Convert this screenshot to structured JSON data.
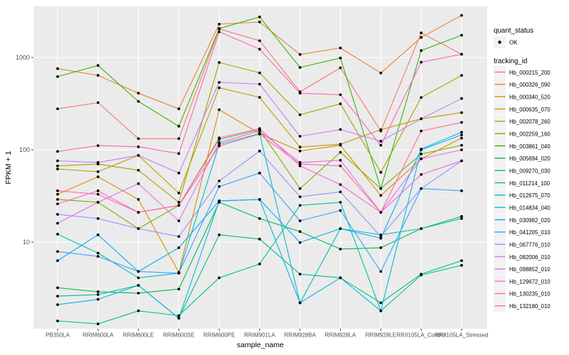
{
  "axes": {
    "x_title": "sample_name",
    "y_title": "FPKM + 1"
  },
  "legend": {
    "quant_status_title": "quant_status",
    "ok_label": "OK",
    "tracking_title": "tracking_id"
  },
  "colors": {
    "background": "#FFFFFF",
    "panel_bg": "#EBEBEB",
    "grid_line": "#FFFFFF",
    "tick_mark": "#333333",
    "tick_label": "#4D4D4D",
    "axis_title": "#000000",
    "legend_key_bg": "#F2F2F2",
    "point": "#000000"
  },
  "chart_data": {
    "type": "line",
    "title": "",
    "xlabel": "sample_name",
    "ylabel": "FPKM + 1",
    "y_scale": "log10",
    "grid": "on",
    "legend_position": "right",
    "point_shape": "filled-circle",
    "y_ticks": [
      1000,
      100,
      10
    ],
    "y_tick_labels": [
      "1000",
      "100",
      "10"
    ],
    "y_minor_exponents": [
      3.5,
      2.5,
      1.5,
      0.5
    ],
    "ylim": [
      0.9,
      3500
    ],
    "quant_status_items": [
      {
        "label": "OK",
        "symbol": "point",
        "color": "#000000"
      }
    ],
    "categories": [
      "PB350LA",
      "RRIM600LA",
      "RRIM600LE",
      "RRIM600SE",
      "RRIM600PE",
      "RRIM901LA",
      "RRIM928BA",
      "RRIM928LA",
      "RRIM928LE",
      "RRII105LA_Control",
      "RRII105LA_Stressed"
    ],
    "series": [
      {
        "name": "Hb_000215_200",
        "color": "#F8766D",
        "values": [
          278,
          325,
          132,
          132,
          2040,
          1520,
          425,
          774,
          160,
          1850,
          1085
        ]
      },
      {
        "name": "Hb_000326_090",
        "color": "#EA8331",
        "values": [
          757,
          640,
          410,
          278,
          2300,
          2425,
          1080,
          1270,
          680,
          1650,
          2865
        ]
      },
      {
        "name": "Hb_000340_520",
        "color": "#D89000",
        "values": [
          33,
          51,
          29,
          4.7,
          272,
          150,
          97,
          112,
          32,
          80,
          134
        ]
      },
      {
        "name": "Hb_000635_070",
        "color": "#C09B00",
        "values": [
          62,
          58,
          87,
          34,
          470,
          370,
          107,
          115,
          165,
          217,
          253
        ]
      },
      {
        "name": "Hb_002078_260",
        "color": "#A3A500",
        "values": [
          67,
          70,
          60,
          27,
          884,
          682,
          240,
          315,
          57,
          368,
          640
        ]
      },
      {
        "name": "Hb_002259_160",
        "color": "#7CAE00",
        "values": [
          29,
          27,
          14,
          25,
          130,
          165,
          38,
          94,
          38,
          90,
          112
        ]
      },
      {
        "name": "Hb_003861_040",
        "color": "#39B600",
        "values": [
          621,
          820,
          334,
          180,
          2060,
          2750,
          780,
          988,
          38,
          1190,
          1745
        ]
      },
      {
        "name": "Hb_005694_020",
        "color": "#00BB4E",
        "values": [
          3.2,
          2.9,
          2.8,
          3.1,
          27,
          18,
          13,
          8.4,
          8.7,
          14,
          19
        ]
      },
      {
        "name": "Hb_009270_030",
        "color": "#00BF7D",
        "values": [
          2.6,
          2.7,
          3.4,
          1.5,
          12,
          10.8,
          4.5,
          4.1,
          2.2,
          4.5,
          6.3
        ]
      },
      {
        "name": "Hb_011214_100",
        "color": "#00C1A3",
        "values": [
          1.4,
          1.3,
          1.8,
          1.6,
          4.1,
          5.8,
          25,
          27,
          1.8,
          4.4,
          5.6
        ]
      },
      {
        "name": "Hb_012675_070",
        "color": "#00BFC4",
        "values": [
          12.2,
          7.6,
          4.1,
          4.6,
          115,
          150,
          2.2,
          14,
          12,
          14,
          18
        ]
      },
      {
        "name": "Hb_014834_040",
        "color": "#00BAE0",
        "values": [
          2.1,
          2.4,
          3.4,
          1.5,
          28,
          29,
          2.2,
          4.1,
          1.8,
          100,
          145
        ]
      },
      {
        "name": "Hb_030982_020",
        "color": "#00B0F6",
        "values": [
          6.3,
          12,
          4.8,
          8.7,
          28,
          29,
          9.9,
          14,
          11,
          102,
          155
        ]
      },
      {
        "name": "Hb_041205_010",
        "color": "#35A2FF",
        "values": [
          7.9,
          7.0,
          4.8,
          4.6,
          40,
          56,
          17,
          22,
          4.8,
          38,
          36
        ]
      },
      {
        "name": "Hb_067776_010",
        "color": "#9590FF",
        "values": [
          20,
          18,
          14,
          11.5,
          46,
          97,
          31,
          35,
          11.5,
          38,
          76
        ]
      },
      {
        "name": "Hb_082006_010",
        "color": "#C77CFF",
        "values": [
          76,
          73,
          87,
          56,
          538,
          515,
          140,
          166,
          124,
          217,
          360
        ]
      },
      {
        "name": "Hb_098852_010",
        "color": "#E76BF3",
        "values": [
          16,
          27,
          43,
          17,
          120,
          160,
          73,
          77,
          21,
          80,
          100
        ]
      },
      {
        "name": "Hb_129672_010",
        "color": "#FA62DB",
        "values": [
          26,
          36,
          21,
          25,
          135,
          170,
          67,
          42,
          21,
          54,
          76
        ]
      },
      {
        "name": "Hb_130235_010",
        "color": "#FF62BC",
        "values": [
          96,
          111,
          108,
          91,
          1900,
          1230,
          410,
          395,
          112,
          890,
          1085
        ]
      },
      {
        "name": "Hb_132180_010",
        "color": "#FF6A98",
        "values": [
          36,
          33,
          21,
          25,
          110,
          148,
          70,
          67,
          21,
          160,
          198
        ]
      }
    ]
  }
}
